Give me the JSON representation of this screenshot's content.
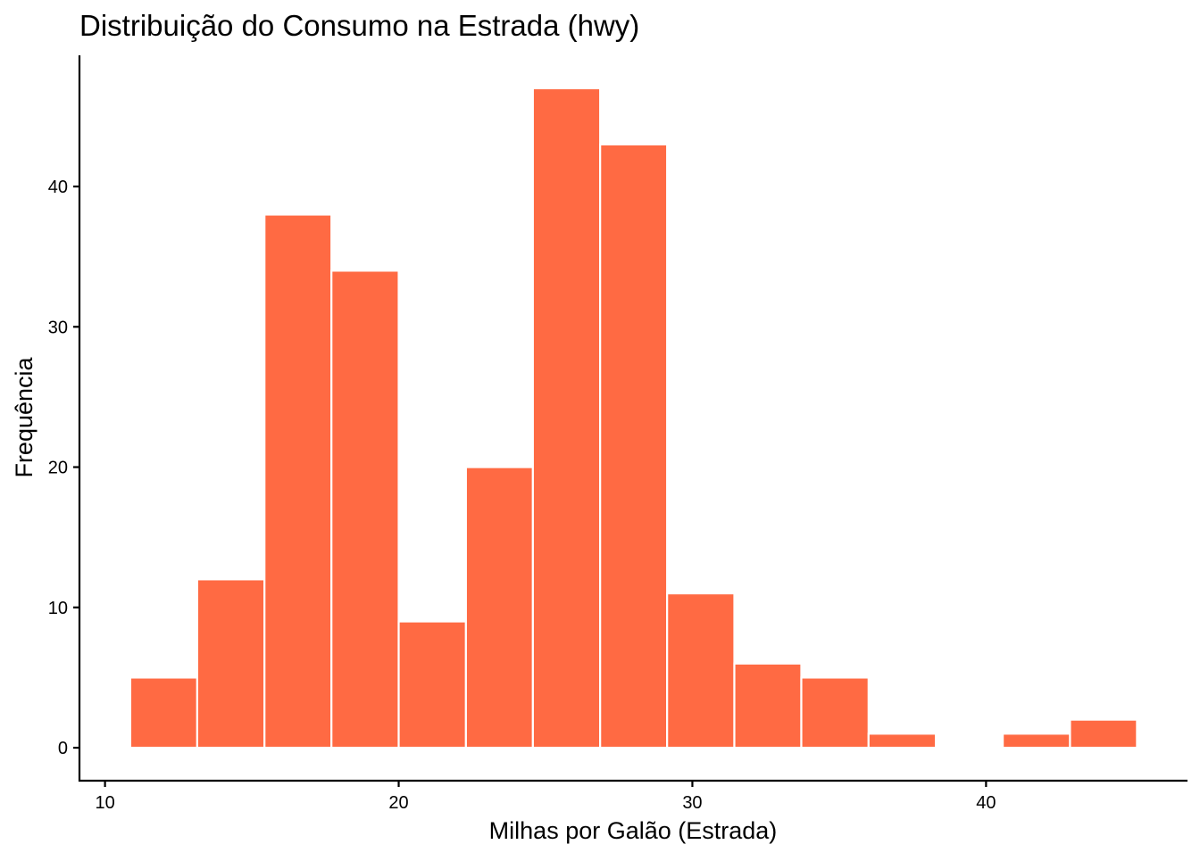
{
  "chart_data": {
    "type": "bar",
    "title": "Distribuição do Consumo na Estrada (hwy)",
    "xlabel": "Milhas por Galão (Estrada)",
    "ylabel": "Frequência",
    "bins": [
      {
        "x0": 10.86,
        "x1": 13.14,
        "count": 5
      },
      {
        "x0": 13.14,
        "x1": 15.43,
        "count": 12
      },
      {
        "x0": 15.43,
        "x1": 17.71,
        "count": 38
      },
      {
        "x0": 17.71,
        "x1": 20.0,
        "count": 34
      },
      {
        "x0": 20.0,
        "x1": 22.29,
        "count": 9
      },
      {
        "x0": 22.29,
        "x1": 24.57,
        "count": 20
      },
      {
        "x0": 24.57,
        "x1": 26.86,
        "count": 47
      },
      {
        "x0": 26.86,
        "x1": 29.14,
        "count": 43
      },
      {
        "x0": 29.14,
        "x1": 31.43,
        "count": 11
      },
      {
        "x0": 31.43,
        "x1": 33.71,
        "count": 6
      },
      {
        "x0": 33.71,
        "x1": 36.0,
        "count": 5
      },
      {
        "x0": 36.0,
        "x1": 38.29,
        "count": 1
      },
      {
        "x0": 38.29,
        "x1": 40.57,
        "count": 0
      },
      {
        "x0": 40.57,
        "x1": 42.86,
        "count": 1
      },
      {
        "x0": 42.86,
        "x1": 45.14,
        "count": 2
      }
    ],
    "x_ticks": [
      10,
      20,
      30,
      40
    ],
    "y_ticks": [
      0,
      10,
      20,
      30,
      40
    ],
    "xlim": [
      9.13,
      46.86
    ],
    "ylim": [
      -2.35,
      49.35
    ],
    "grid": false,
    "legend": "none",
    "bar_color": "#FF6A43",
    "bar_edge_color": "#FFFFFF"
  }
}
